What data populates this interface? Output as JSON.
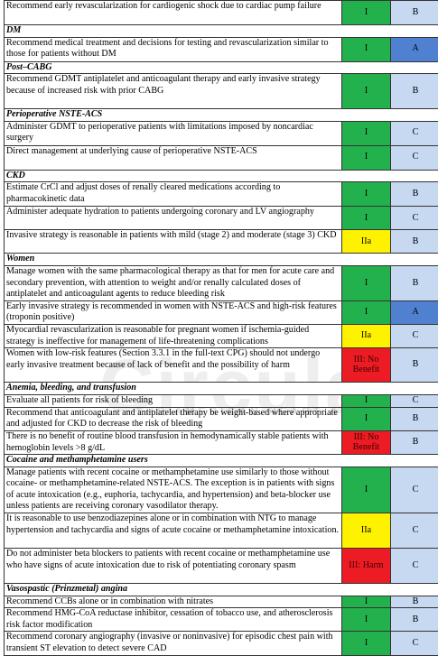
{
  "watermark": {
    "main": "Circulati",
    "sub": "THE AMERICAN HEART AS"
  },
  "rows": [
    {
      "type": "rec",
      "text": "Recommend early revascularization for cardiogenic shock due to cardiac pump failure",
      "cor": "I",
      "loe": "B",
      "cor_color": "green",
      "loe_color": "light",
      "h": 27
    },
    {
      "type": "section",
      "text": "DM",
      "h": 13
    },
    {
      "type": "rec",
      "text": "Recommend medical treatment and decisions for testing and revascularization similar to those for patients without DM",
      "cor": "I",
      "loe": "A",
      "cor_color": "green",
      "loe_color": "dark",
      "h": 27
    },
    {
      "type": "section",
      "text": "Post–CABG",
      "h": 13
    },
    {
      "type": "rec",
      "text": "Recommend GDMT antiplatelet and anticoagulant therapy and early invasive strategy because of increased risk with prior CABG",
      "cor": "I",
      "loe": "B",
      "cor_color": "green",
      "loe_color": "light",
      "h": 39
    },
    {
      "type": "section",
      "text": "Perioperative NSTE-ACS",
      "h": 13
    },
    {
      "type": "rec",
      "text": "Administer GDMT to perioperative patients with limitations imposed by noncardiac surgery",
      "cor": "I",
      "loe": "C",
      "cor_color": "green",
      "loe_color": "light",
      "h": 27
    },
    {
      "type": "rec",
      "text": "Direct management at underlying cause of perioperative NSTE-ACS",
      "cor": "I",
      "loe": "C",
      "cor_color": "green",
      "loe_color": "light",
      "h": 27
    },
    {
      "type": "section",
      "text": "CKD",
      "h": 13
    },
    {
      "type": "rec",
      "text": "Estimate CrCl and adjust doses of renally cleared medications according to pharmacokinetic data",
      "cor": "I",
      "loe": "B",
      "cor_color": "green",
      "loe_color": "light",
      "h": 27
    },
    {
      "type": "rec",
      "text": "Administer adequate hydration to patients undergoing coronary and LV angiography",
      "cor": "I",
      "loe": "C",
      "cor_color": "green",
      "loe_color": "light",
      "h": 26
    },
    {
      "type": "rec",
      "text": "Invasive strategy is reasonable in patients with mild (stage 2) and moderate (stage 3) CKD",
      "cor": "IIa",
      "loe": "B",
      "cor_color": "yellow",
      "loe_color": "light",
      "h": 26
    },
    {
      "type": "section",
      "text": "Women",
      "h": 13
    },
    {
      "type": "rec",
      "text": "Manage women with the same pharmacological therapy as that for men for acute care and secondary prevention, with attention to weight and/or renally calculated doses of antiplatelet and anticoagulant agents to reduce bleeding risk",
      "cor": "I",
      "loe": "B",
      "cor_color": "green",
      "loe_color": "light",
      "h": 38
    },
    {
      "type": "rec",
      "text": "Early invasive strategy is recommended in women with NSTE-ACS and high-risk features (troponin positive)",
      "cor": "I",
      "loe": "A",
      "cor_color": "green",
      "loe_color": "dark",
      "h": 26
    },
    {
      "type": "rec",
      "text": "Myocardial revascularization is reasonable for pregnant women if ischemia-guided strategy is ineffective for management of life-threatening complications",
      "cor": "IIa",
      "loe": "C",
      "cor_color": "yellow",
      "loe_color": "light",
      "h": 26
    },
    {
      "type": "rec",
      "text": "Women with low-risk features (Section 3.3.1 in the full-text CPG) should not undergo early invasive treatment because of lack of benefit and the possibility of harm",
      "cor": "III: No Benefit",
      "loe": "B",
      "cor_color": "red",
      "loe_color": "light",
      "h": 38
    },
    {
      "type": "section",
      "text": "Anemia, bleeding, and transfusion",
      "h": 13
    },
    {
      "type": "rec",
      "text": "Evaluate all patients for risk of bleeding",
      "cor": "I",
      "loe": "C",
      "cor_color": "green",
      "loe_color": "light",
      "h": 14
    },
    {
      "type": "rec",
      "text": "Recommend that anticoagulant and antiplatelet therapy be weight-based where appropriate and adjusted for CKD to decrease the risk of bleeding",
      "cor": "I",
      "loe": "B",
      "cor_color": "green",
      "loe_color": "light",
      "h": 26
    },
    {
      "type": "rec",
      "text": "There is no benefit of routine blood transfusion in hemodynamically stable patients with hemoglobin levels >8 g/dL",
      "cor": "III: No Benefit",
      "loe": "B",
      "cor_color": "red",
      "loe_color": "light",
      "h": 26
    },
    {
      "type": "section",
      "text": "Cocaine and methamphetamine users",
      "h": 13
    },
    {
      "type": "rec",
      "text": "Manage patients with recent cocaine or methamphetamine use similarly to those without cocaine- or methamphetamine-related NSTE-ACS. The exception is in patients with signs of acute intoxication (e.g., euphoria, tachycardia, and hypertension) and beta-blocker use unless patients are receiving coronary vasodilator therapy.",
      "cor": "I",
      "loe": "C",
      "cor_color": "green",
      "loe_color": "light",
      "h": 51
    },
    {
      "type": "rec",
      "text": "It is reasonable to use benzodiazepines alone or in combination with NTG to manage hypertension and tachycardia and signs of acute cocaine or methamphetamine intoxication.",
      "cor": "IIa",
      "loe": "C",
      "cor_color": "yellow",
      "loe_color": "light",
      "h": 39
    },
    {
      "type": "rec",
      "text": "Do not administer beta blockers to patients with recent cocaine or methamphetamine use who have signs of acute intoxication due to risk of potentiating coronary spasm",
      "cor": "III: Harm",
      "loe": "C",
      "cor_color": "red",
      "loe_color": "light",
      "h": 39
    },
    {
      "type": "section",
      "text": "Vasospastic (Prinzmetal) angina",
      "h": 13
    },
    {
      "type": "rec",
      "text": "Recommend CCBs alone or in combination with nitrates",
      "cor": "I",
      "loe": "B",
      "cor_color": "green",
      "loe_color": "light",
      "h": 13
    },
    {
      "type": "rec",
      "text": "Recommend HMG-CoA reductase inhibitor, cessation of tobacco use, and atherosclerosis risk factor modification",
      "cor": "I",
      "loe": "B",
      "cor_color": "green",
      "loe_color": "light",
      "h": 26
    },
    {
      "type": "rec",
      "text": "Recommend coronary angiography (invasive or noninvasive) for episodic chest pain with transient ST elevation to detect severe CAD",
      "cor": "I",
      "loe": "C",
      "cor_color": "green",
      "loe_color": "light",
      "h": 26
    }
  ]
}
